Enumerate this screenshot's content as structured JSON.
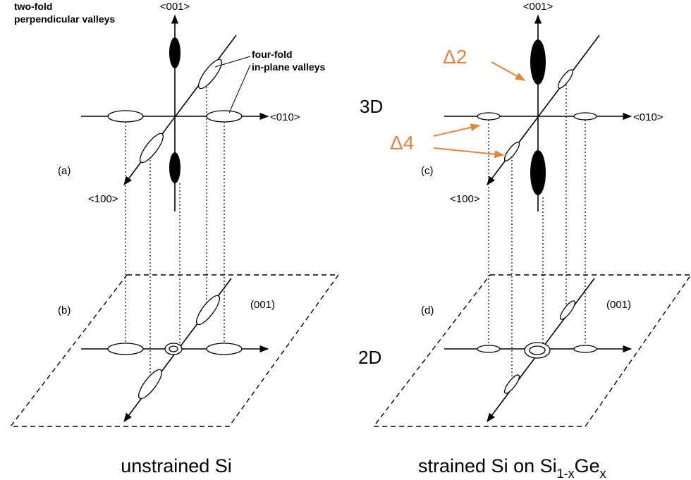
{
  "left": {
    "note_perpendicular": [
      "two-fold",
      "perpendicular valleys"
    ],
    "note_inplane": [
      "four-fold",
      "in-plane valleys"
    ],
    "axis_z": "<001>",
    "axis_y": "<010>",
    "axis_x": "<100>",
    "panel_3d": "(a)",
    "panel_2d": "(b)",
    "plane": "(001)",
    "caption": "unstrained Si"
  },
  "right": {
    "axis_z": "<001>",
    "axis_y": "<010>",
    "axis_x": "<100>",
    "panel_3d": "(c)",
    "panel_2d": "(d)",
    "plane": "(001)",
    "delta2": "Δ2",
    "delta4": "Δ4",
    "caption": [
      "strained Si on Si",
      "1-x",
      "Ge",
      "x"
    ]
  },
  "label_3d": "3D",
  "label_2d": "2D"
}
